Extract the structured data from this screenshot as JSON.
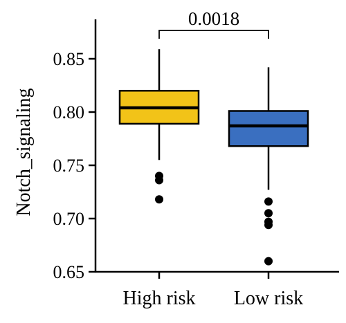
{
  "chart_data": {
    "type": "box",
    "title": "",
    "ylabel": "Notch_signaling",
    "xlabel": "",
    "ylim": [
      0.65,
      0.87
    ],
    "yticks": [
      "0.65",
      "0.70",
      "0.75",
      "0.80",
      "0.85"
    ],
    "ytick_values": [
      0.65,
      0.7,
      0.75,
      0.8,
      0.85
    ],
    "categories": [
      "High risk",
      "Low risk"
    ],
    "boxes": [
      {
        "category": "High risk",
        "color": "#F2C318",
        "whisker_low": 0.755,
        "q1": 0.789,
        "median": 0.804,
        "q3": 0.82,
        "whisker_high": 0.859,
        "outliers": [
          0.74,
          0.736,
          0.718
        ]
      },
      {
        "category": "Low risk",
        "color": "#3A6FC0",
        "whisker_low": 0.727,
        "q1": 0.768,
        "median": 0.787,
        "q3": 0.801,
        "whisker_high": 0.842,
        "outliers": [
          0.716,
          0.705,
          0.697,
          0.694,
          0.66
        ]
      }
    ],
    "comparison": {
      "label": "0.0018",
      "from": "High risk",
      "to": "Low risk"
    },
    "grid": false,
    "legend": "none"
  }
}
